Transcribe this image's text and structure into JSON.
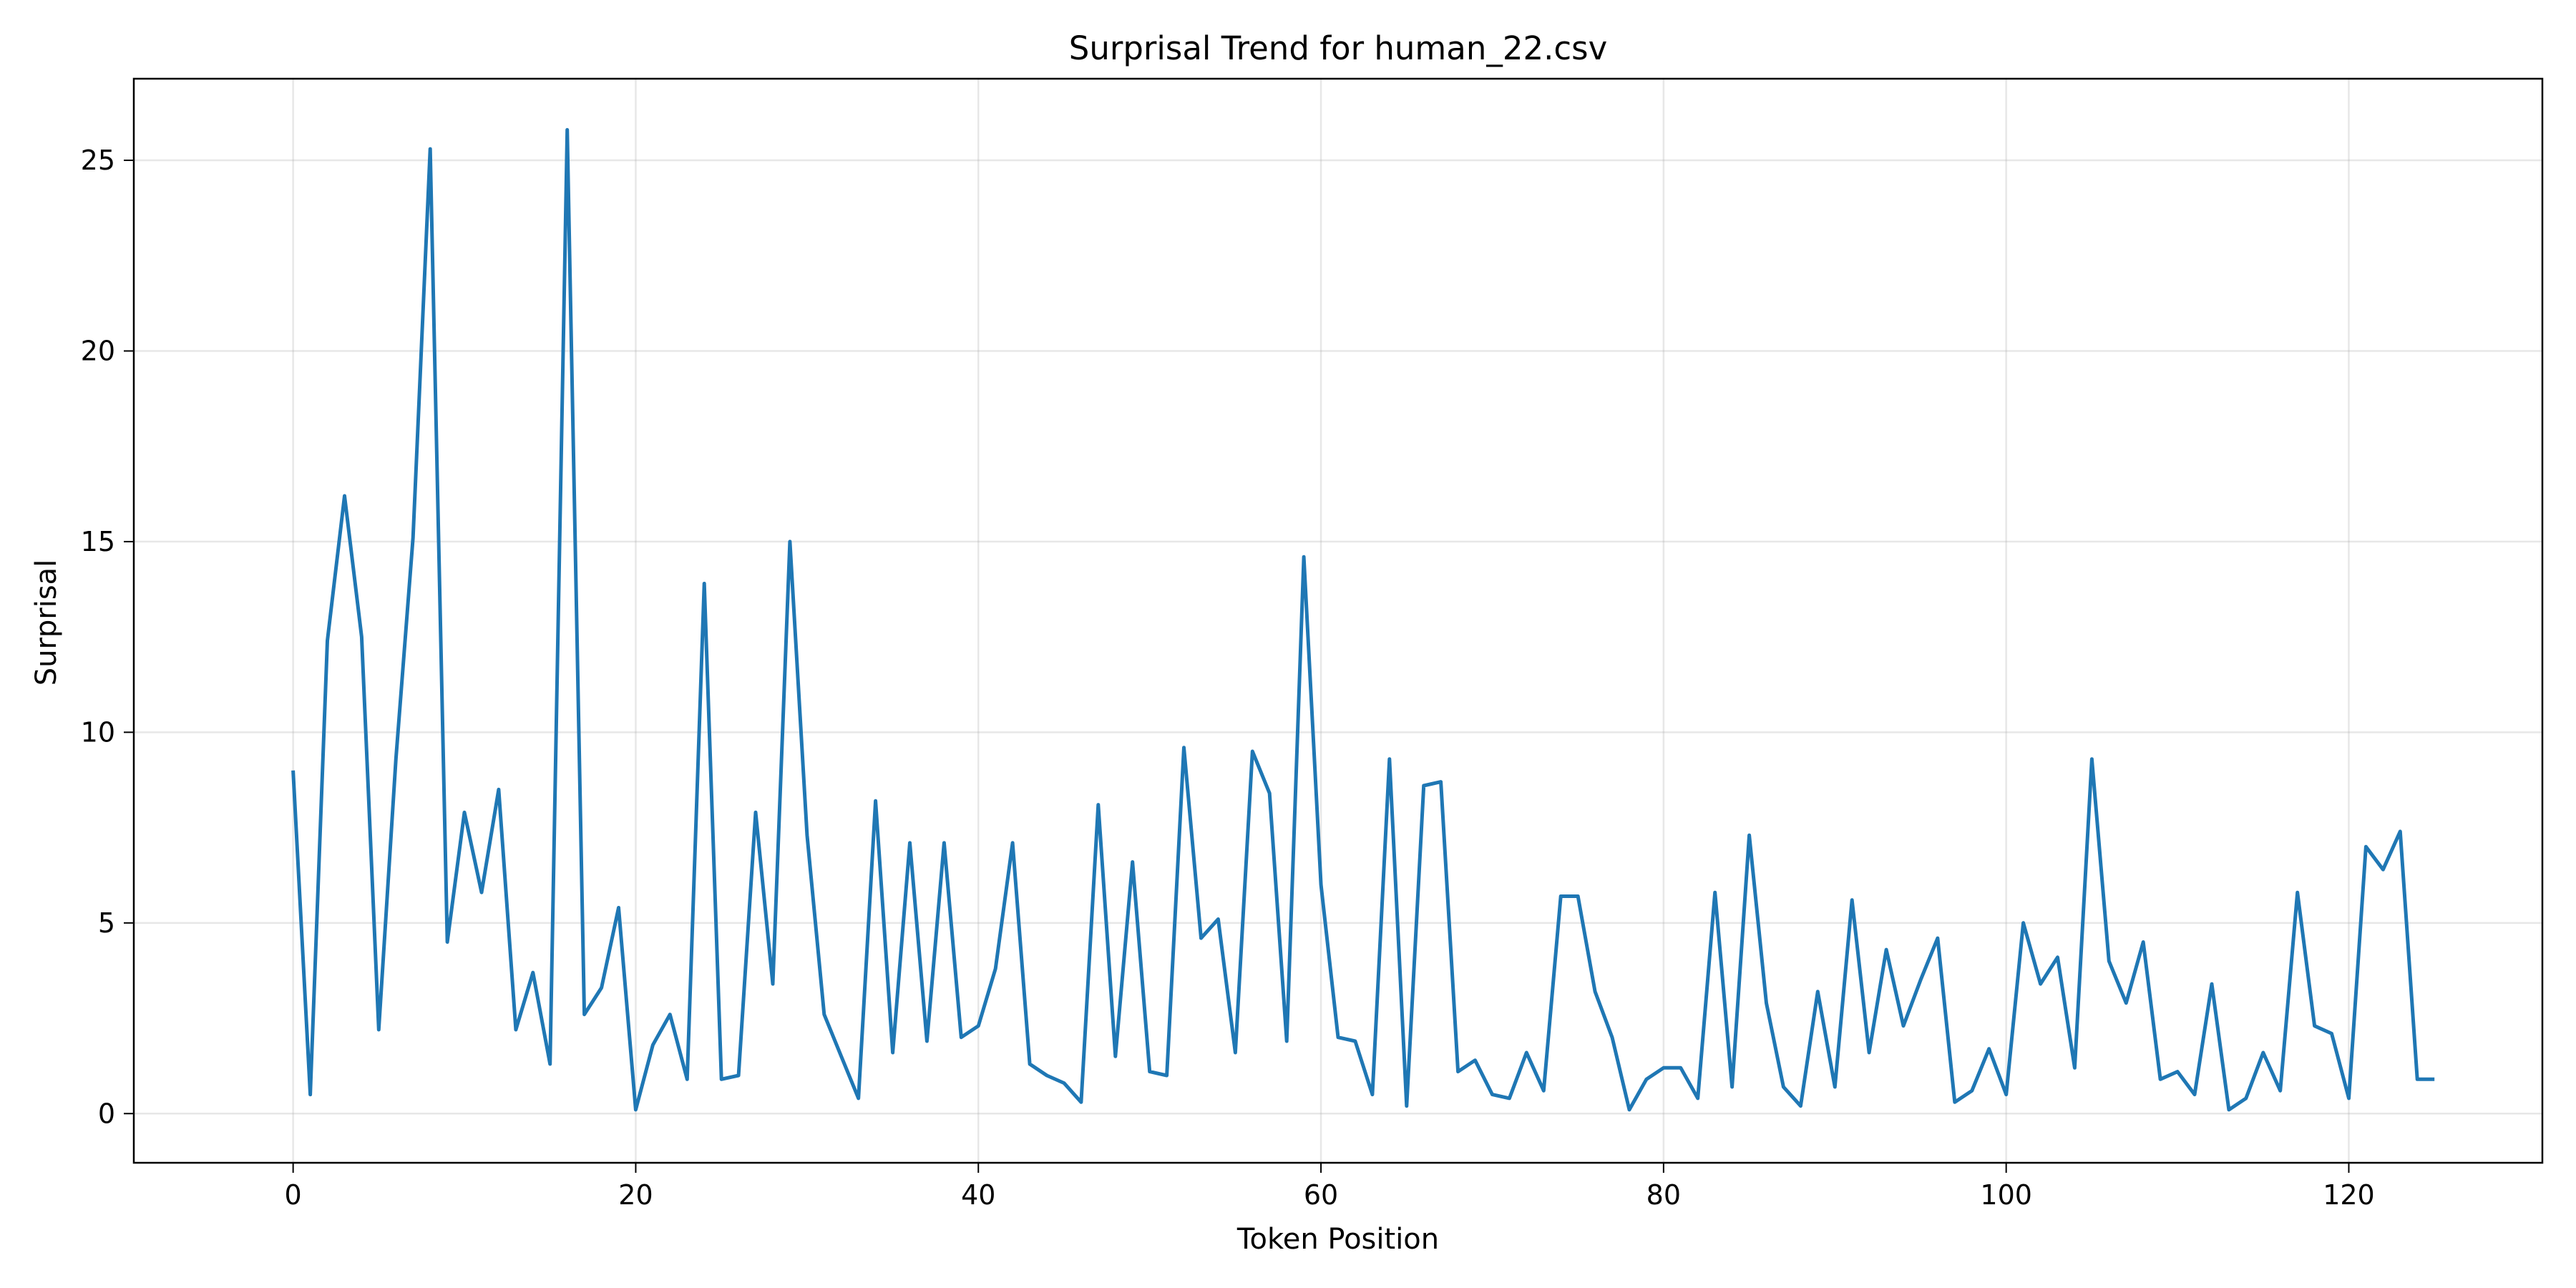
{
  "chart_data": {
    "type": "line",
    "title": "Surprisal Trend for human_22.csv",
    "xlabel": "Token Position",
    "ylabel": "Surprisal",
    "xlim": [
      -9.3,
      131.3
    ],
    "ylim": [
      -1.29,
      27.14
    ],
    "xticks": [
      0,
      20,
      40,
      60,
      80,
      100,
      120
    ],
    "yticks": [
      0,
      5,
      10,
      15,
      20,
      25
    ],
    "grid": true,
    "legend": "none",
    "colors": {
      "series": "#1f77b4"
    },
    "series": [
      {
        "x": [
          0,
          1,
          2,
          3,
          4,
          5,
          6,
          7,
          8,
          9,
          10,
          11,
          12,
          13,
          14,
          15,
          16,
          17,
          18,
          19,
          20,
          21,
          22,
          23,
          24,
          25,
          26,
          27,
          28,
          29,
          30,
          31,
          32,
          33,
          34,
          35,
          36,
          37,
          38,
          39,
          40,
          41,
          42,
          43,
          44,
          45,
          46,
          47,
          48,
          49,
          50,
          51,
          52,
          53,
          54,
          55,
          56,
          57,
          58,
          59,
          60,
          61,
          62,
          63,
          64,
          65,
          66,
          67,
          68,
          69,
          70,
          71,
          72,
          73,
          74,
          75,
          76,
          77,
          78,
          79,
          80,
          81,
          82,
          83,
          84,
          85,
          86,
          87,
          88,
          89,
          90,
          91,
          92,
          93,
          94,
          95,
          96,
          97,
          98,
          99,
          100,
          101,
          102,
          103,
          104,
          105,
          106,
          107,
          108,
          109,
          110,
          111,
          112,
          113,
          114,
          115,
          116,
          117,
          118,
          119,
          120,
          121,
          122,
          123,
          124,
          125
        ],
        "values": [
          9.0,
          0.5,
          12.4,
          16.2,
          12.5,
          2.2,
          9.3,
          15.1,
          25.3,
          4.5,
          7.9,
          5.8,
          8.5,
          2.2,
          3.7,
          1.3,
          25.8,
          2.6,
          3.3,
          5.4,
          0.1,
          1.8,
          2.6,
          0.9,
          13.9,
          0.9,
          1.0,
          7.9,
          3.4,
          15.0,
          7.3,
          2.6,
          1.5,
          0.4,
          8.2,
          1.6,
          7.1,
          1.9,
          7.1,
          2.0,
          2.3,
          3.8,
          7.1,
          1.3,
          1.0,
          0.8,
          0.3,
          8.1,
          1.5,
          6.6,
          1.1,
          1.0,
          9.6,
          4.6,
          5.1,
          1.6,
          9.5,
          8.4,
          1.9,
          14.6,
          6.0,
          2.0,
          1.9,
          0.5,
          9.3,
          0.2,
          8.6,
          8.7,
          1.1,
          1.4,
          0.5,
          0.4,
          1.6,
          0.6,
          5.7,
          5.7,
          3.2,
          2.0,
          0.1,
          0.9,
          1.2,
          1.2,
          0.4,
          5.8,
          0.7,
          7.3,
          2.9,
          0.7,
          0.2,
          3.2,
          0.7,
          5.6,
          1.6,
          4.3,
          2.3,
          3.5,
          4.6,
          0.3,
          0.6,
          1.7,
          0.5,
          5.0,
          3.4,
          4.1,
          1.2,
          9.3,
          4.0,
          2.9,
          4.5,
          0.9,
          1.1,
          0.5,
          3.4,
          0.1,
          0.4,
          1.6,
          0.6,
          5.8,
          2.3,
          2.1,
          0.4,
          7.0,
          6.4,
          7.4,
          0.9,
          0.9
        ]
      }
    ]
  }
}
